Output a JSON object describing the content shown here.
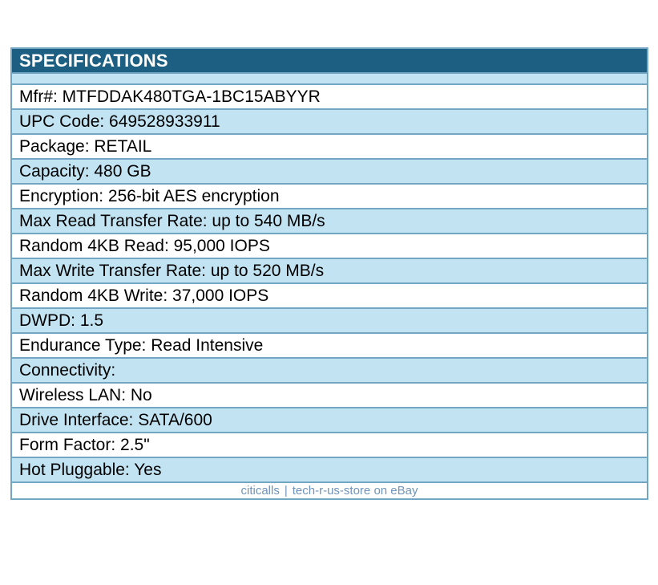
{
  "header": {
    "title": "SPECIFICATIONS"
  },
  "rows": [
    "Mfr#: MTFDDAK480TGA-1BC15ABYYR",
    "UPC Code: 649528933911",
    "Package: RETAIL",
    "Capacity: 480 GB",
    "Encryption: 256-bit AES encryption",
    "Max Read Transfer Rate: up to 540 MB/s",
    "Random 4KB Read: 95,000 IOPS",
    "Max Write Transfer Rate: up to 520 MB/s",
    "Random 4KB Write: 37,000 IOPS",
    "DWPD: 1.5",
    "Endurance Type: Read Intensive",
    "Connectivity:",
    "Wireless LAN: No",
    "Drive Interface: SATA/600",
    "Form Factor: 2.5\"",
    "Hot Pluggable: Yes"
  ],
  "footer": {
    "left": "citicalls",
    "separator": "|",
    "right": "tech-r-us-store on eBay"
  },
  "colors": {
    "header_bg": "#1d5f82",
    "header_text": "#ffffff",
    "row_alt_bg": "#c2e3f2",
    "row_white_bg": "#ffffff",
    "border_color": "#73a6c2",
    "row_text": "#000000",
    "footer_text": "#6f94b8",
    "page_bg": "#ffffff"
  }
}
